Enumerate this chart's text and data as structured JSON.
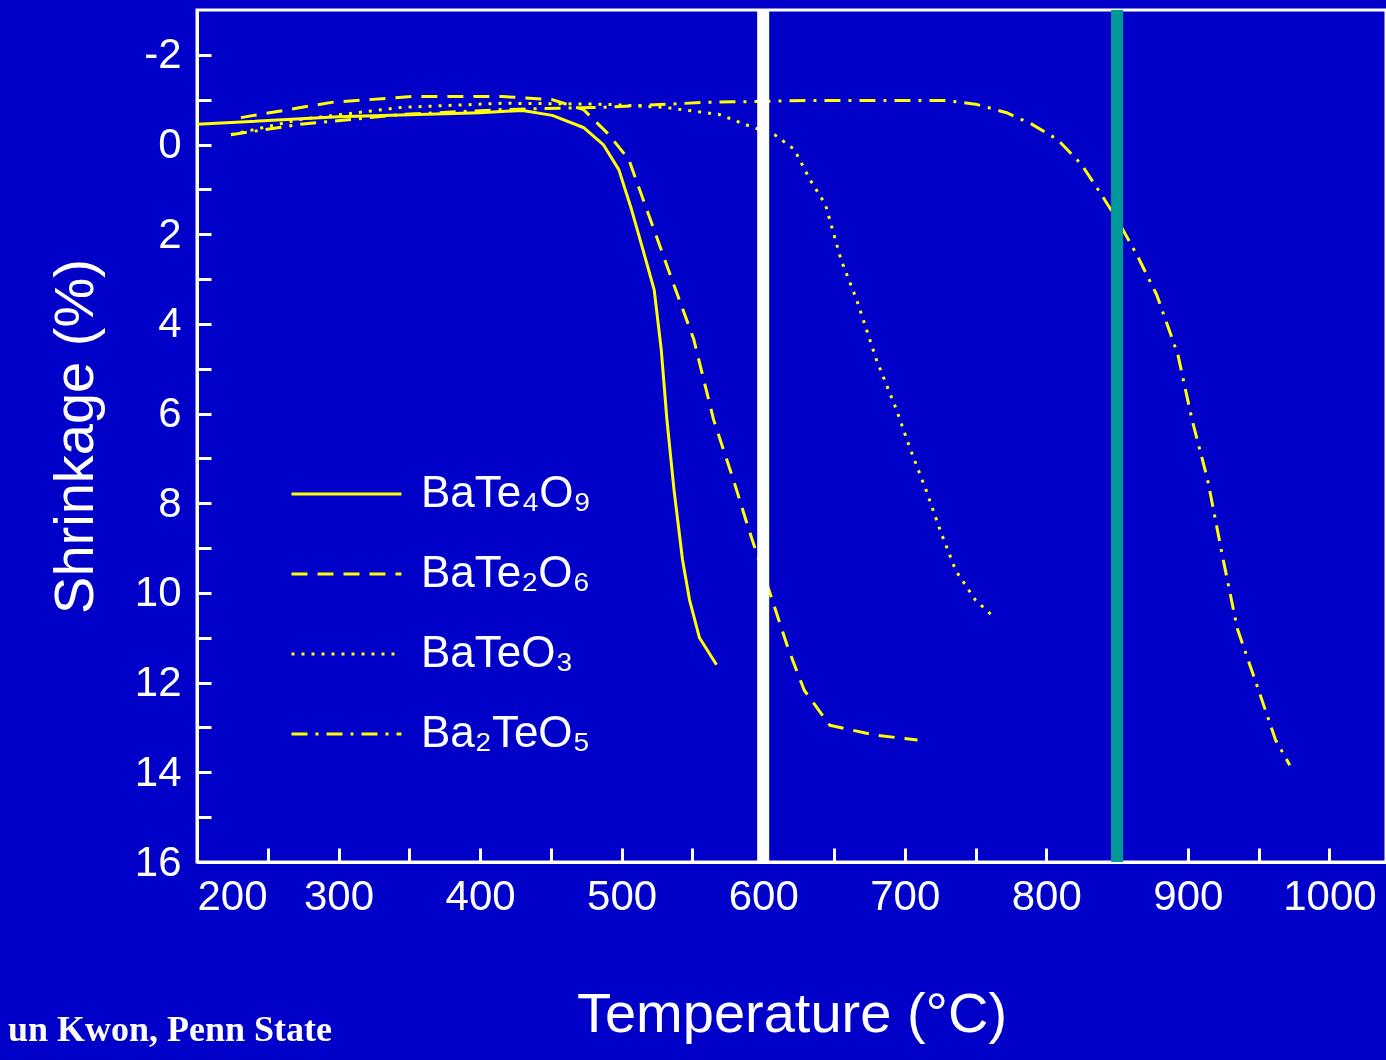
{
  "chart_data": {
    "type": "line",
    "xlabel": "Temperature (°C)",
    "ylabel": "Shrinkage (%)",
    "xlim": [
      200,
      1040
    ],
    "ylim": [
      16,
      -3
    ],
    "xticks": [
      200,
      {
        "value": 250,
        "label": null
      },
      300,
      {
        "value": 350,
        "label": null
      },
      400,
      {
        "value": 450,
        "label": null
      },
      500,
      {
        "value": 550,
        "label": null
      },
      600,
      {
        "value": 650,
        "label": null
      },
      700,
      {
        "value": 750,
        "label": null
      },
      800,
      {
        "value": 850,
        "label": null
      },
      900,
      {
        "value": 950,
        "label": null
      },
      1000
    ],
    "yticks": [
      -2,
      {
        "value": -1,
        "label": null
      },
      0,
      {
        "value": 1,
        "label": null
      },
      2,
      {
        "value": 3,
        "label": null
      },
      4,
      {
        "value": 5,
        "label": null
      },
      6,
      {
        "value": 7,
        "label": null
      },
      8,
      {
        "value": 9,
        "label": null
      },
      10,
      {
        "value": 11,
        "label": null
      },
      12,
      {
        "value": 13,
        "label": null
      },
      14,
      {
        "value": 15,
        "label": null
      },
      16
    ],
    "grid": false,
    "legend": "left",
    "marker": "none",
    "series": [
      {
        "name": "BaTe₄O₉",
        "color": "#ffff00",
        "line_style": "solid",
        "x": [
          200,
          300,
          400,
          430,
          451,
          473,
          487,
          498,
          507,
          515,
          523,
          528,
          532,
          537,
          543,
          548,
          555,
          567
        ],
        "values": [
          -0.45,
          -0.62,
          -0.71,
          -0.76,
          -0.65,
          -0.38,
          0,
          0.56,
          1.45,
          2.34,
          3.24,
          4.58,
          6.14,
          7.7,
          9.26,
          10.16,
          11.0,
          11.6
        ]
      },
      {
        "name": "BaTe₂O₆",
        "color": "#ffff00",
        "line_style": "dashed",
        "x": [
          231,
          295,
          352,
          416,
          451,
          473,
          491,
          505,
          519,
          533,
          551,
          565,
          579,
          590,
          604,
          618,
          629,
          647,
          679,
          709
        ],
        "values": [
          -0.6,
          -0.94,
          -1.07,
          -1.07,
          -1.0,
          -0.78,
          -0.22,
          0.33,
          1.56,
          2.79,
          4.35,
          6.14,
          7.48,
          8.6,
          9.93,
          11.27,
          12.17,
          12.95,
          13.17,
          13.28
        ]
      },
      {
        "name": "BaTeO₃",
        "color": "#ffff00",
        "line_style": "dotted",
        "x": [
          224,
          273,
          345,
          416,
          487,
          530,
          569,
          587,
          608,
          622,
          633,
          644,
          655,
          666,
          680,
          694,
          704,
          715,
          725,
          736,
          750,
          763
        ],
        "values": [
          -0.22,
          -0.56,
          -0.83,
          -0.92,
          -0.9,
          -0.83,
          -0.67,
          -0.45,
          -0.22,
          0.11,
          0.78,
          1.34,
          2.57,
          3.46,
          4.8,
          5.9,
          6.8,
          7.7,
          8.6,
          9.5,
          10.16,
          10.54
        ]
      },
      {
        "name": "Ba₂TeO₅",
        "color": "#ffff00",
        "line_style": "dashdot",
        "x": [
          224,
          273,
          345,
          416,
          487,
          559,
          630,
          729,
          750,
          772,
          790,
          808,
          825,
          839,
          850,
          864,
          878,
          893,
          903,
          914,
          925,
          935,
          950,
          962,
          972
        ],
        "values": [
          -0.22,
          -0.45,
          -0.67,
          -0.78,
          -0.83,
          -0.94,
          -0.98,
          -0.98,
          -0.9,
          -0.71,
          -0.45,
          -0.11,
          0.45,
          1.12,
          1.67,
          2.46,
          3.35,
          4.69,
          6.14,
          7.48,
          9.26,
          10.8,
          12.17,
          13.28,
          13.84
        ]
      }
    ],
    "ref_lines": [
      {
        "axis": "x",
        "value": 600,
        "color": "#ffffff"
      },
      {
        "axis": "x",
        "value": 850,
        "color": "#009999"
      }
    ],
    "annotations": [
      "un Kwon, Penn State"
    ]
  }
}
